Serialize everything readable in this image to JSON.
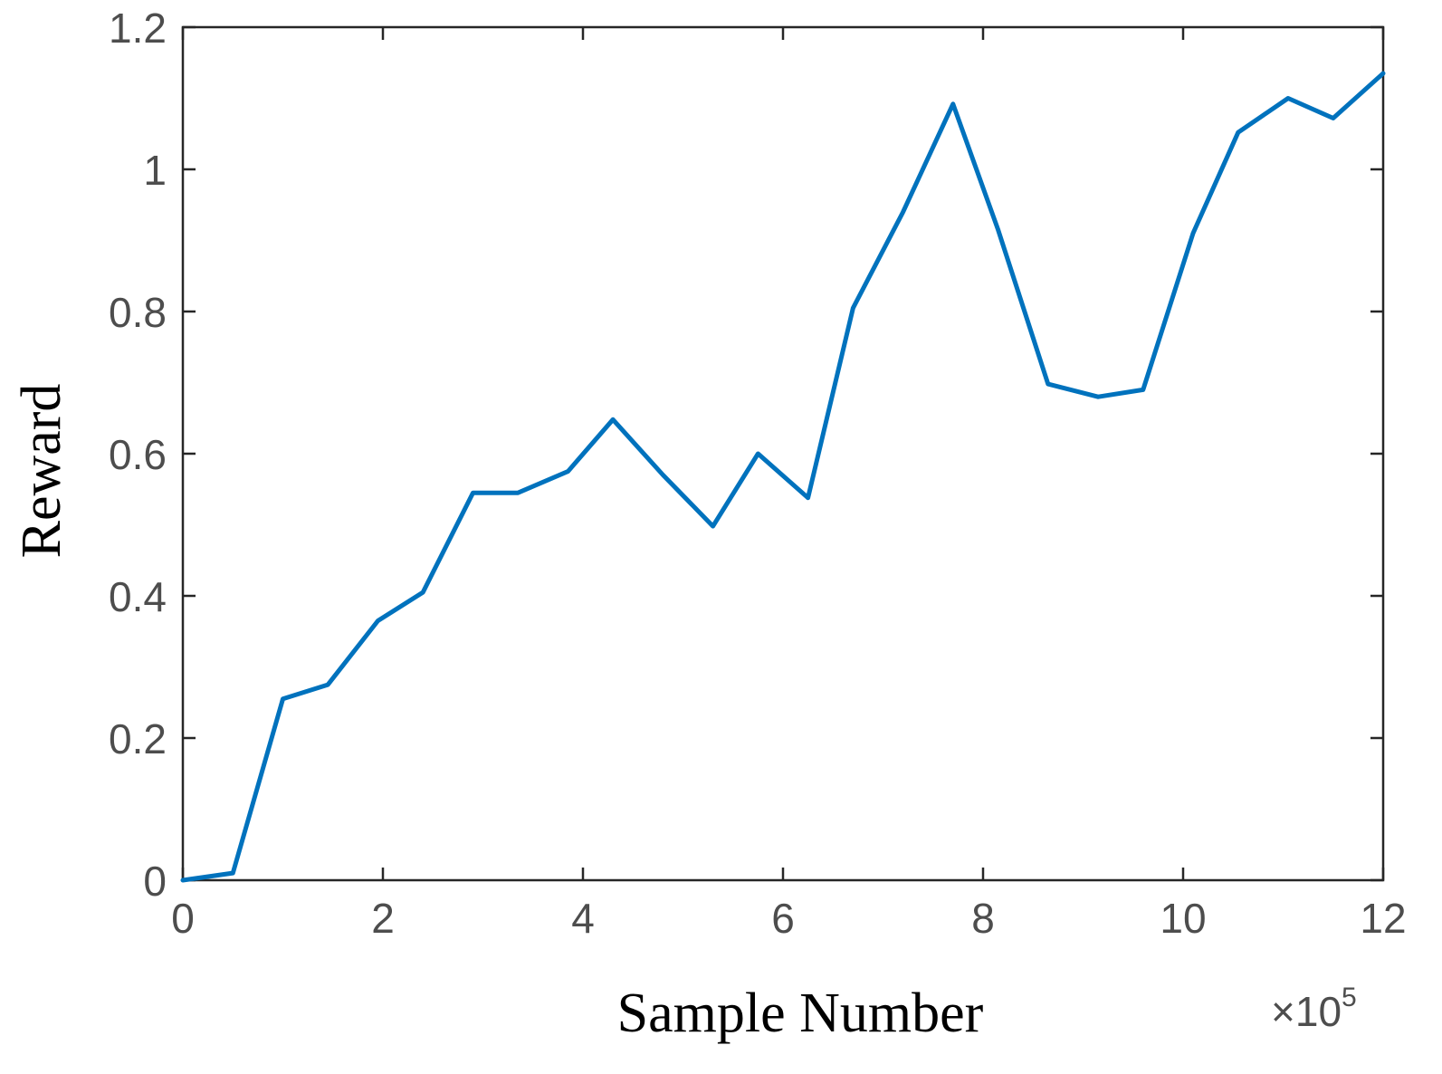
{
  "chart_data": {
    "type": "line",
    "title": "",
    "xlabel": "Sample Number",
    "ylabel": "Reward",
    "x_multiplier": "×10",
    "x_multiplier_exponent": "5",
    "xlim": [
      0,
      12
    ],
    "ylim": [
      0,
      1.2
    ],
    "xticks": [
      0,
      2,
      4,
      6,
      8,
      10,
      12
    ],
    "yticks": [
      0,
      0.2,
      0.4,
      0.6,
      0.8,
      1,
      1.2
    ],
    "xtick_labels": [
      "0",
      "2",
      "4",
      "6",
      "8",
      "10",
      "12"
    ],
    "ytick_labels": [
      "0",
      "0.2",
      "0.4",
      "0.6",
      "0.8",
      "1",
      "1.2"
    ],
    "grid": false,
    "series": [
      {
        "color": "#0072bd",
        "x": [
          0,
          0.5,
          1.0,
          1.45,
          1.95,
          2.4,
          2.9,
          3.35,
          3.85,
          4.3,
          4.8,
          5.3,
          5.75,
          6.25,
          6.7,
          7.2,
          7.7,
          8.15,
          8.65,
          9.15,
          9.6,
          10.1,
          10.55,
          11.05,
          11.5,
          12.0
        ],
        "y": [
          0,
          0.01,
          0.255,
          0.275,
          0.365,
          0.405,
          0.545,
          0.545,
          0.575,
          0.648,
          0.57,
          0.498,
          0.6,
          0.538,
          0.805,
          0.94,
          1.092,
          0.915,
          0.698,
          0.68,
          0.69,
          0.91,
          1.052,
          1.1,
          1.072,
          1.135
        ]
      }
    ]
  }
}
